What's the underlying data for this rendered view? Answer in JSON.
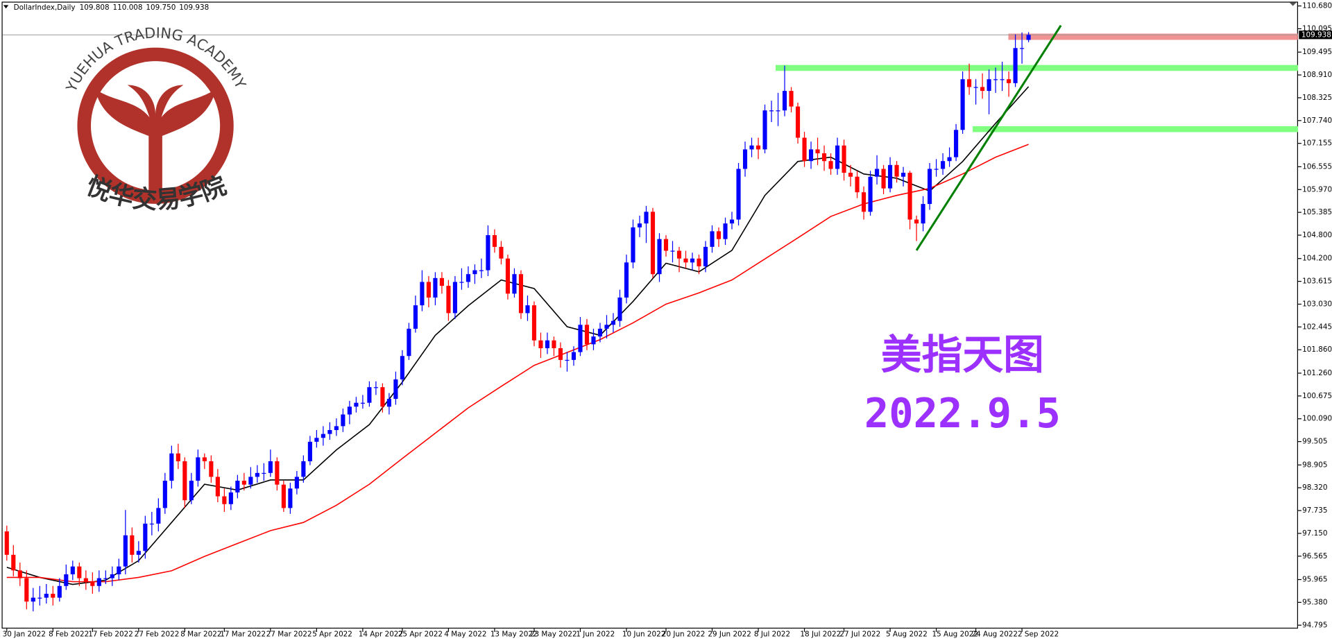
{
  "chart_data": {
    "type": "candlestick",
    "symbol": "DollarIndex,Daily",
    "header_values": [
      "109.808",
      "110.008",
      "109.750",
      "109.938"
    ],
    "up_color": "#0000ff",
    "down_color": "#ff0000",
    "ylim": [
      94.795,
      110.68
    ],
    "yticks": [
      {
        "value": 110.68,
        "label": "110.680"
      },
      110.095,
      109.495,
      {
        "value": 108.91,
        "label": "108.910"
      },
      108.325,
      {
        "value": 107.74,
        "label": "107.740"
      },
      107.155,
      106.555,
      {
        "value": 105.97,
        "label": "105.970"
      },
      105.385,
      {
        "value": 104.8,
        "label": "104.800"
      },
      {
        "value": 104.2,
        "label": "104.200"
      },
      103.615,
      {
        "value": 103.03,
        "label": "103.030"
      },
      102.445,
      {
        "value": 101.86,
        "label": "101.860"
      },
      {
        "value": 101.26,
        "label": "101.260"
      },
      100.675,
      {
        "value": 100.09,
        "label": "100.090"
      },
      99.505,
      98.905,
      {
        "value": 98.32,
        "label": "98.320"
      },
      97.735,
      {
        "value": 97.15,
        "label": "97.150"
      },
      96.565,
      95.965,
      {
        "value": 95.38,
        "label": "95.380"
      },
      94.795
    ],
    "categories": [
      "30 Jan 2022",
      null,
      null,
      null,
      null,
      null,
      null,
      "8 Feb 2022",
      null,
      null,
      null,
      null,
      null,
      "17 Feb 2022",
      null,
      null,
      null,
      null,
      null,
      null,
      "27 Feb 2022",
      null,
      null,
      null,
      null,
      null,
      null,
      "8 Mar 2022",
      null,
      null,
      null,
      null,
      null,
      "17 Mar 2022",
      null,
      null,
      null,
      null,
      null,
      null,
      "27 Mar 2022",
      null,
      null,
      null,
      null,
      null,
      null,
      "5 Apr 2022",
      null,
      null,
      null,
      null,
      null,
      null,
      "14 Apr 2022",
      null,
      null,
      null,
      null,
      null,
      "25 Apr 2022",
      null,
      null,
      null,
      null,
      null,
      null,
      "4 May 2022",
      null,
      null,
      null,
      null,
      null,
      null,
      "13 May 2022",
      null,
      null,
      null,
      null,
      null,
      "23 May 2022",
      null,
      null,
      null,
      null,
      null,
      null,
      "1 Jun 2022",
      null,
      null,
      null,
      null,
      null,
      null,
      "10 Jun 2022",
      null,
      null,
      null,
      null,
      null,
      "20 Jun 2022",
      null,
      null,
      null,
      null,
      null,
      null,
      "29 Jun 2022",
      null,
      null,
      null,
      null,
      null,
      null,
      "8 Jul 2022",
      null,
      null,
      null,
      null,
      null,
      null,
      "18 Jul 2022",
      null,
      null,
      null,
      null,
      null,
      "27 Jul 2022",
      null,
      null,
      null,
      null,
      null,
      null,
      "5 Aug 2022",
      null,
      null,
      null,
      null,
      null,
      null,
      "15 Aug 2022",
      null,
      null,
      null,
      null,
      null,
      "24 Aug 2022",
      null,
      null,
      null,
      null,
      null,
      null,
      "2 Sep 2022",
      null
    ],
    "ohlc": [
      [
        97.2,
        97.35,
        96.45,
        96.6
      ],
      [
        96.6,
        96.85,
        96.05,
        96.2
      ],
      [
        96.2,
        96.4,
        95.8,
        96.0
      ],
      [
        96.0,
        96.2,
        95.2,
        95.4
      ],
      [
        95.4,
        95.75,
        95.15,
        95.5
      ],
      [
        95.5,
        95.8,
        95.3,
        95.5
      ],
      [
        95.5,
        95.85,
        95.35,
        95.6
      ],
      [
        95.6,
        95.8,
        95.3,
        95.5
      ],
      [
        95.5,
        96.0,
        95.4,
        95.8
      ],
      [
        95.8,
        96.35,
        95.7,
        96.1
      ],
      [
        96.1,
        96.45,
        95.95,
        96.3
      ],
      [
        96.3,
        96.4,
        95.8,
        96.0
      ],
      [
        96.0,
        96.2,
        95.7,
        95.9
      ],
      [
        95.9,
        96.15,
        95.6,
        95.8
      ],
      [
        95.8,
        96.2,
        95.65,
        96.0
      ],
      [
        96.0,
        96.2,
        95.85,
        96.0
      ],
      [
        96.0,
        96.3,
        95.8,
        96.1
      ],
      [
        96.1,
        96.5,
        95.95,
        96.3
      ],
      [
        96.3,
        97.75,
        96.1,
        97.1
      ],
      [
        97.1,
        97.3,
        96.4,
        96.6
      ],
      [
        96.6,
        96.95,
        96.4,
        96.7
      ],
      [
        96.7,
        97.6,
        96.5,
        97.4
      ],
      [
        97.4,
        97.7,
        97.1,
        97.4
      ],
      [
        97.4,
        98.05,
        97.2,
        97.8
      ],
      [
        97.8,
        98.7,
        97.65,
        98.5
      ],
      [
        98.5,
        99.4,
        98.3,
        99.2
      ],
      [
        99.2,
        99.45,
        98.8,
        99.0
      ],
      [
        99.0,
        99.1,
        97.8,
        98.0
      ],
      [
        98.0,
        98.7,
        97.9,
        98.5
      ],
      [
        98.5,
        99.3,
        98.35,
        99.1
      ],
      [
        99.1,
        99.2,
        98.8,
        99.0
      ],
      [
        99.0,
        99.15,
        98.45,
        98.6
      ],
      [
        98.6,
        98.8,
        97.95,
        98.1
      ],
      [
        98.1,
        98.3,
        97.7,
        97.9
      ],
      [
        97.9,
        98.35,
        97.75,
        98.2
      ],
      [
        98.2,
        98.65,
        98.05,
        98.5
      ],
      [
        98.5,
        98.7,
        98.25,
        98.4
      ],
      [
        98.4,
        98.85,
        98.3,
        98.6
      ],
      [
        98.6,
        98.9,
        98.45,
        98.7
      ],
      [
        98.7,
        98.95,
        98.5,
        98.7
      ],
      [
        98.7,
        99.3,
        98.6,
        99.0
      ],
      [
        99.0,
        99.1,
        98.25,
        98.4
      ],
      [
        98.4,
        98.5,
        97.7,
        97.8
      ],
      [
        97.8,
        98.45,
        97.65,
        98.3
      ],
      [
        98.3,
        98.75,
        98.15,
        98.6
      ],
      [
        98.6,
        99.15,
        98.45,
        99.0
      ],
      [
        99.0,
        99.65,
        98.9,
        99.5
      ],
      [
        99.5,
        99.8,
        99.35,
        99.6
      ],
      [
        99.6,
        99.9,
        99.4,
        99.7
      ],
      [
        99.7,
        100.0,
        99.55,
        99.8
      ],
      [
        99.8,
        100.1,
        99.65,
        99.9
      ],
      [
        99.9,
        100.35,
        99.75,
        100.2
      ],
      [
        100.2,
        100.55,
        99.95,
        100.4
      ],
      [
        100.4,
        100.65,
        100.25,
        100.5
      ],
      [
        100.5,
        100.7,
        100.35,
        100.5
      ],
      [
        100.5,
        101.05,
        100.4,
        100.9
      ],
      [
        100.9,
        101.05,
        100.7,
        100.9
      ],
      [
        100.9,
        101.0,
        100.25,
        100.4
      ],
      [
        100.4,
        100.75,
        100.2,
        100.6
      ],
      [
        100.6,
        101.3,
        100.45,
        101.1
      ],
      [
        101.1,
        101.85,
        100.95,
        101.7
      ],
      [
        101.7,
        102.55,
        101.6,
        102.4
      ],
      [
        102.4,
        103.25,
        102.3,
        103.0
      ],
      [
        103.0,
        103.9,
        102.85,
        103.6
      ],
      [
        103.6,
        103.75,
        102.95,
        103.2
      ],
      [
        103.2,
        103.85,
        103.0,
        103.7
      ],
      [
        103.7,
        103.85,
        103.3,
        103.5
      ],
      [
        103.5,
        103.65,
        102.6,
        102.8
      ],
      [
        102.8,
        103.75,
        102.65,
        103.6
      ],
      [
        103.6,
        103.95,
        103.4,
        103.6
      ],
      [
        103.6,
        104.0,
        103.45,
        103.8
      ],
      [
        103.8,
        104.05,
        103.55,
        103.9
      ],
      [
        103.9,
        104.2,
        103.7,
        103.9
      ],
      [
        103.9,
        105.05,
        103.75,
        104.8
      ],
      [
        104.8,
        104.95,
        104.35,
        104.5
      ],
      [
        104.5,
        104.65,
        104.05,
        104.2
      ],
      [
        104.2,
        104.3,
        103.15,
        103.3
      ],
      [
        103.3,
        103.95,
        103.2,
        103.8
      ],
      [
        103.8,
        103.9,
        102.65,
        102.8
      ],
      [
        102.8,
        103.25,
        102.6,
        103.0
      ],
      [
        103.0,
        103.1,
        101.95,
        102.1
      ],
      [
        102.1,
        102.3,
        101.65,
        101.9
      ],
      [
        101.9,
        102.3,
        101.75,
        102.1
      ],
      [
        102.1,
        102.2,
        101.7,
        101.9
      ],
      [
        101.9,
        102.05,
        101.4,
        101.6
      ],
      [
        101.6,
        101.8,
        101.3,
        101.6
      ],
      [
        101.6,
        101.95,
        101.45,
        101.8
      ],
      [
        101.8,
        102.7,
        101.7,
        102.5
      ],
      [
        102.5,
        102.65,
        101.85,
        102.0
      ],
      [
        102.0,
        102.4,
        101.85,
        102.2
      ],
      [
        102.2,
        102.55,
        102.05,
        102.4
      ],
      [
        102.4,
        102.75,
        102.15,
        102.5
      ],
      [
        102.5,
        102.8,
        102.3,
        102.6
      ],
      [
        102.6,
        103.4,
        102.45,
        103.2
      ],
      [
        103.2,
        104.3,
        103.05,
        104.1
      ],
      [
        104.1,
        105.2,
        103.95,
        105.0
      ],
      [
        105.0,
        105.3,
        104.75,
        105.1
      ],
      [
        105.1,
        105.55,
        104.6,
        105.4
      ],
      [
        105.4,
        105.5,
        103.7,
        103.8
      ],
      [
        103.8,
        104.85,
        103.6,
        104.7
      ],
      [
        104.7,
        104.8,
        104.25,
        104.4
      ],
      [
        104.4,
        104.65,
        104.1,
        104.4
      ],
      [
        104.4,
        104.5,
        103.85,
        104.2
      ],
      [
        104.2,
        104.4,
        103.95,
        104.1
      ],
      [
        104.1,
        104.35,
        103.9,
        104.2
      ],
      [
        104.2,
        104.3,
        103.8,
        104.0
      ],
      [
        104.0,
        104.65,
        103.85,
        104.5
      ],
      [
        104.5,
        105.05,
        104.35,
        104.9
      ],
      [
        104.9,
        105.0,
        104.5,
        104.7
      ],
      [
        104.7,
        105.25,
        104.55,
        105.1
      ],
      [
        105.1,
        105.4,
        104.95,
        105.2
      ],
      [
        105.2,
        106.65,
        105.05,
        106.5
      ],
      [
        106.5,
        107.2,
        106.3,
        107.0
      ],
      [
        107.0,
        107.3,
        106.8,
        107.1
      ],
      [
        107.1,
        107.3,
        106.75,
        107.0
      ],
      [
        107.0,
        108.15,
        106.9,
        108.0
      ],
      [
        108.0,
        108.25,
        107.7,
        108.0
      ],
      [
        108.0,
        108.45,
        107.6,
        108.0
      ],
      [
        108.0,
        109.15,
        107.85,
        108.5
      ],
      [
        108.5,
        108.6,
        107.95,
        108.1
      ],
      [
        108.1,
        108.2,
        107.15,
        107.3
      ],
      [
        107.3,
        107.45,
        106.55,
        106.7
      ],
      [
        106.7,
        107.2,
        106.5,
        107.0
      ],
      [
        107.0,
        107.3,
        106.6,
        106.9
      ],
      [
        106.9,
        107.1,
        106.45,
        106.7
      ],
      [
        106.7,
        106.9,
        106.35,
        106.5
      ],
      [
        106.5,
        107.3,
        106.35,
        107.1
      ],
      [
        107.1,
        107.25,
        106.2,
        106.4
      ],
      [
        106.4,
        106.6,
        106.05,
        106.3
      ],
      [
        106.3,
        106.45,
        105.75,
        105.9
      ],
      [
        105.9,
        106.05,
        105.2,
        105.4
      ],
      [
        105.4,
        106.45,
        105.3,
        106.3
      ],
      [
        106.3,
        106.85,
        106.1,
        106.5
      ],
      [
        106.5,
        106.6,
        105.85,
        106.0
      ],
      [
        106.0,
        106.8,
        105.9,
        106.6
      ],
      [
        106.6,
        106.7,
        106.15,
        106.3
      ],
      [
        106.3,
        106.55,
        106.05,
        106.4
      ],
      [
        106.4,
        106.45,
        104.95,
        105.2
      ],
      [
        105.2,
        105.3,
        104.65,
        105.1
      ],
      [
        105.1,
        105.8,
        104.9,
        105.6
      ],
      [
        105.6,
        106.65,
        105.45,
        106.5
      ],
      [
        106.5,
        106.75,
        106.3,
        106.5
      ],
      [
        106.5,
        106.9,
        106.35,
        106.7
      ],
      [
        106.7,
        107.05,
        106.55,
        106.8
      ],
      [
        106.8,
        107.65,
        106.7,
        107.5
      ],
      [
        107.5,
        109.0,
        107.4,
        108.8
      ],
      [
        108.8,
        109.2,
        108.4,
        108.6
      ],
      [
        108.6,
        108.8,
        108.15,
        108.6
      ],
      [
        108.6,
        108.95,
        108.3,
        108.5
      ],
      [
        108.5,
        109.05,
        107.9,
        108.8
      ],
      [
        108.8,
        109.1,
        108.45,
        108.8
      ],
      [
        108.8,
        109.25,
        108.5,
        108.8
      ],
      [
        108.8,
        109.0,
        108.35,
        108.7
      ],
      [
        108.7,
        109.95,
        108.6,
        109.6
      ],
      [
        109.6,
        110.0,
        109.2,
        109.6
      ],
      [
        109.808,
        110.008,
        109.75,
        109.938
      ]
    ],
    "lines": [
      {
        "color": "#000000",
        "x": [
          0,
          5,
          10,
          15,
          20,
          25,
          30,
          35,
          40,
          45,
          50,
          55,
          60,
          65,
          70,
          75,
          80,
          85,
          90,
          95,
          100,
          105,
          110,
          115,
          120,
          125,
          130,
          135,
          140,
          145,
          150,
          155
        ],
        "values": [
          96.28,
          96.02,
          95.84,
          95.95,
          96.45,
          97.43,
          98.41,
          98.26,
          98.52,
          98.52,
          99.29,
          99.94,
          101.03,
          102.23,
          102.99,
          103.65,
          103.43,
          102.45,
          102.23,
          103.1,
          104.08,
          103.86,
          104.41,
          105.82,
          106.69,
          106.8,
          106.37,
          106.26,
          105.93,
          106.69,
          107.67,
          108.61
        ]
      },
      {
        "color": "#ff0000",
        "x": [
          0,
          5,
          10,
          15,
          20,
          25,
          30,
          35,
          40,
          45,
          50,
          55,
          60,
          65,
          70,
          75,
          80,
          85,
          90,
          95,
          100,
          105,
          110,
          115,
          120,
          125,
          130,
          135,
          140,
          145,
          150,
          155
        ],
        "values": [
          96.02,
          96.02,
          95.91,
          95.91,
          96.02,
          96.19,
          96.56,
          96.89,
          97.22,
          97.43,
          97.87,
          98.41,
          99.07,
          99.72,
          100.37,
          100.92,
          101.46,
          101.79,
          102.12,
          102.55,
          103.03,
          103.32,
          103.65,
          104.19,
          104.73,
          105.28,
          105.6,
          105.82,
          106.0,
          106.37,
          106.8,
          107.13
        ]
      }
    ],
    "levels": [
      {
        "price": 109.09,
        "color": "#80ff80"
      },
      {
        "price": 107.52,
        "color": "#80ff80"
      }
    ],
    "zone": {
      "range": [
        109.81,
        109.97
      ],
      "color": "#f08080"
    },
    "trendline": {
      "values": [
        104.41,
        110.18
      ],
      "color": "#008000"
    },
    "annotations": [
      "美指天图",
      "2022.9.5"
    ],
    "annotation_color": "#9b30ff"
  },
  "logo": {
    "text": "YUEHUA TRADING ACADEMY",
    "name_cn": "悦华交易学院",
    "color": "#b0322a"
  }
}
